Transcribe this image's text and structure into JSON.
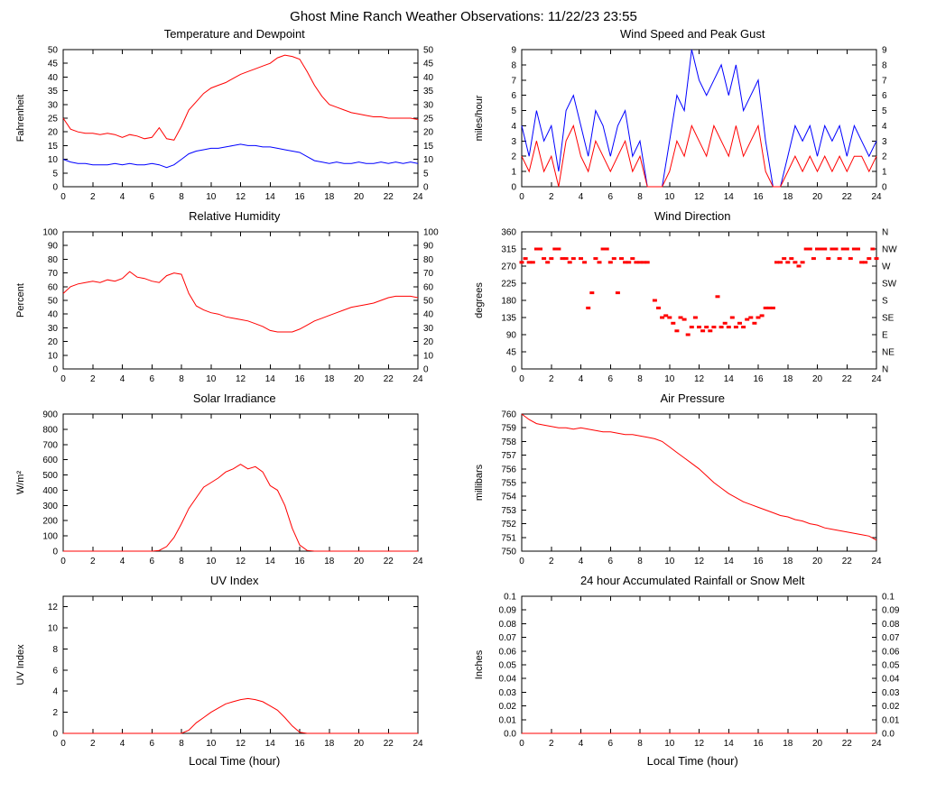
{
  "page_title": "Ghost Mine Ranch Weather Observations: 11/22/23 23:55",
  "colors": {
    "series_red": "#ff0000",
    "series_blue": "#0000ff",
    "axis": "#000000",
    "background": "#ffffff"
  },
  "chart_data": [
    {
      "type": "line",
      "title": "Temperature and Dewpoint",
      "ylabel": "Fahrenheit",
      "xlim": [
        0,
        24
      ],
      "ylim": [
        0,
        50
      ],
      "xticks": [
        0,
        2,
        4,
        6,
        8,
        10,
        12,
        14,
        16,
        18,
        20,
        22,
        24
      ],
      "ytick_values": [
        0,
        5,
        10,
        15,
        20,
        25,
        30,
        35,
        40,
        45,
        50
      ],
      "ytick_labels": [
        "0",
        "5",
        "10",
        "15",
        "20",
        "25",
        "30",
        "35",
        "40",
        "45",
        "50"
      ],
      "right_labels": "same",
      "grid": false,
      "series": [
        {
          "name": "Temperature",
          "color": "#ff0000",
          "x_step": 0.5,
          "y": [
            25,
            21,
            20,
            19.5,
            19.5,
            19,
            19.5,
            19,
            18,
            19,
            18.5,
            17.5,
            18,
            21.5,
            17.5,
            17,
            22,
            28,
            31,
            34,
            36,
            37,
            38,
            39.5,
            41,
            42,
            43,
            44,
            45,
            47,
            48,
            47.5,
            46.5,
            42,
            37,
            33,
            30,
            29,
            28,
            27,
            26.5,
            26,
            25.5,
            25.5,
            25,
            25,
            25,
            25,
            24.5
          ]
        },
        {
          "name": "Dewpoint",
          "color": "#0000ff",
          "x_step": 0.5,
          "y": [
            10,
            9,
            8.5,
            8.5,
            8,
            8,
            8,
            8.5,
            8,
            8.5,
            8,
            8,
            8.5,
            8,
            7,
            8,
            10,
            12,
            13,
            13.5,
            14,
            14,
            14.5,
            15,
            15.5,
            15,
            15,
            14.5,
            14.5,
            14,
            13.5,
            13,
            12.5,
            11,
            9.5,
            9,
            8.5,
            9,
            8.5,
            8.5,
            9,
            8.5,
            8.5,
            9,
            8.5,
            9,
            8.5,
            9,
            8.5
          ]
        }
      ]
    },
    {
      "type": "line",
      "title": "Wind Speed and Peak Gust",
      "ylabel": "miles/hour",
      "xlim": [
        0,
        24
      ],
      "ylim": [
        0,
        9
      ],
      "xticks": [
        0,
        2,
        4,
        6,
        8,
        10,
        12,
        14,
        16,
        18,
        20,
        22,
        24
      ],
      "ytick_values": [
        0,
        1,
        2,
        3,
        4,
        5,
        6,
        7,
        8,
        9
      ],
      "ytick_labels": [
        "0",
        "1",
        "2",
        "3",
        "4",
        "5",
        "6",
        "7",
        "8",
        "9"
      ],
      "right_labels": "same",
      "grid": false,
      "series": [
        {
          "name": "Peak Gust",
          "color": "#0000ff",
          "x_step": 0.5,
          "y": [
            4,
            2,
            5,
            3,
            4,
            1,
            5,
            6,
            4,
            2,
            5,
            4,
            2,
            4,
            5,
            2,
            3,
            0,
            0,
            0,
            3,
            6,
            5,
            9,
            7,
            6,
            7,
            8,
            6,
            8,
            5,
            6,
            7,
            3,
            0,
            0,
            2,
            4,
            3,
            4,
            2,
            4,
            3,
            4,
            2,
            4,
            3,
            2,
            3
          ]
        },
        {
          "name": "Wind Speed",
          "color": "#ff0000",
          "x_step": 0.5,
          "y": [
            2,
            1,
            3,
            1,
            2,
            0,
            3,
            4,
            2,
            1,
            3,
            2,
            1,
            2,
            3,
            1,
            2,
            0,
            0,
            0,
            1,
            3,
            2,
            4,
            3,
            2,
            4,
            3,
            2,
            4,
            2,
            3,
            4,
            1,
            0,
            0,
            1,
            2,
            1,
            2,
            1,
            2,
            1,
            2,
            1,
            2,
            2,
            1,
            2
          ]
        }
      ]
    },
    {
      "type": "line",
      "title": "Relative Humidity",
      "ylabel": "Percent",
      "xlim": [
        0,
        24
      ],
      "ylim": [
        0,
        100
      ],
      "xticks": [
        0,
        2,
        4,
        6,
        8,
        10,
        12,
        14,
        16,
        18,
        20,
        22,
        24
      ],
      "ytick_values": [
        0,
        10,
        20,
        30,
        40,
        50,
        60,
        70,
        80,
        90,
        100
      ],
      "ytick_labels": [
        "0",
        "10",
        "20",
        "30",
        "40",
        "50",
        "60",
        "70",
        "80",
        "90",
        "100"
      ],
      "right_labels": "same",
      "grid": false,
      "series": [
        {
          "name": "Relative Humidity",
          "color": "#ff0000",
          "x_step": 0.5,
          "y": [
            55,
            60,
            62,
            63,
            64,
            63,
            65,
            64,
            66,
            71,
            67,
            66,
            64,
            63,
            68,
            70,
            69,
            55,
            46,
            43,
            41,
            40,
            38,
            37,
            36,
            35,
            33,
            31,
            28,
            27,
            27,
            27,
            29,
            32,
            35,
            37,
            39,
            41,
            43,
            45,
            46,
            47,
            48,
            50,
            52,
            53,
            53,
            53,
            52
          ]
        }
      ]
    },
    {
      "type": "scatter",
      "title": "Wind Direction",
      "ylabel": "degrees",
      "xlim": [
        0,
        24
      ],
      "ylim": [
        0,
        360
      ],
      "xticks": [
        0,
        2,
        4,
        6,
        8,
        10,
        12,
        14,
        16,
        18,
        20,
        22,
        24
      ],
      "ytick_values": [
        0,
        45,
        90,
        135,
        180,
        225,
        270,
        315,
        360
      ],
      "ytick_labels": [
        "0",
        "45",
        "90",
        "135",
        "180",
        "225",
        "270",
        "315",
        "360"
      ],
      "right_labels": "custom",
      "rtick_values": [
        0,
        45,
        90,
        135,
        180,
        225,
        270,
        315,
        360
      ],
      "rtick_labels": [
        "N",
        "NE",
        "E",
        "SE",
        "S",
        "SW",
        "W",
        "NW",
        "N"
      ],
      "grid": false,
      "series": [
        {
          "name": "Wind Direction",
          "color": "#ff0000",
          "x": [
            0,
            0.25,
            0.5,
            0.75,
            1,
            1.25,
            1.5,
            1.75,
            2,
            2.25,
            2.5,
            2.75,
            3,
            3.25,
            3.5,
            4,
            4.25,
            4.5,
            4.75,
            5,
            5.25,
            5.5,
            5.75,
            6,
            6.25,
            6.5,
            6.75,
            7,
            7.25,
            7.5,
            7.75,
            8,
            8.25,
            8.5,
            9,
            9.25,
            9.5,
            9.75,
            10,
            10.25,
            10.5,
            10.75,
            11,
            11.25,
            11.5,
            11.75,
            12,
            12.25,
            12.5,
            12.75,
            13,
            13.25,
            13.5,
            13.75,
            14,
            14.25,
            14.5,
            14.75,
            15,
            15.25,
            15.5,
            15.75,
            16,
            16.25,
            16.5,
            16.75,
            17,
            17.25,
            17.5,
            17.75,
            18,
            18.25,
            18.5,
            18.75,
            19,
            19.25,
            19.5,
            19.75,
            20,
            20.25,
            20.5,
            20.75,
            21,
            21.25,
            21.5,
            21.75,
            22,
            22.25,
            22.5,
            22.75,
            23,
            23.25,
            23.5,
            23.75,
            24
          ],
          "y": [
            280,
            290,
            280,
            280,
            315,
            315,
            290,
            280,
            290,
            315,
            315,
            290,
            290,
            280,
            290,
            290,
            280,
            160,
            200,
            290,
            280,
            315,
            315,
            280,
            290,
            200,
            290,
            280,
            280,
            290,
            280,
            280,
            280,
            280,
            180,
            160,
            135,
            140,
            135,
            120,
            100,
            135,
            130,
            90,
            110,
            135,
            110,
            100,
            110,
            100,
            110,
            190,
            110,
            120,
            110,
            135,
            110,
            120,
            110,
            130,
            135,
            120,
            135,
            140,
            160,
            160,
            160,
            280,
            280,
            290,
            280,
            290,
            280,
            270,
            280,
            315,
            315,
            290,
            315,
            315,
            315,
            290,
            315,
            315,
            290,
            315,
            315,
            290,
            315,
            315,
            280,
            280,
            290,
            315,
            290
          ]
        }
      ]
    },
    {
      "type": "line",
      "title": "Solar Irradiance",
      "ylabel": "W/m²",
      "xlim": [
        0,
        24
      ],
      "ylim": [
        0,
        900
      ],
      "xticks": [
        0,
        2,
        4,
        6,
        8,
        10,
        12,
        14,
        16,
        18,
        20,
        22,
        24
      ],
      "ytick_values": [
        0,
        100,
        200,
        300,
        400,
        500,
        600,
        700,
        800,
        900
      ],
      "ytick_labels": [
        "0",
        "100",
        "200",
        "300",
        "400",
        "500",
        "600",
        "700",
        "800",
        "900"
      ],
      "right_labels": "none",
      "grid": false,
      "series": [
        {
          "name": "Solar Irradiance",
          "color": "#ff0000",
          "x_step": 0.5,
          "y": [
            0,
            0,
            0,
            0,
            0,
            0,
            0,
            0,
            0,
            0,
            0,
            0,
            0,
            5,
            30,
            90,
            180,
            280,
            350,
            420,
            450,
            480,
            520,
            540,
            570,
            540,
            555,
            520,
            430,
            400,
            300,
            150,
            40,
            5,
            0,
            0,
            0,
            0,
            0,
            0,
            0,
            0,
            0,
            0,
            0,
            0,
            0,
            0,
            0
          ]
        }
      ]
    },
    {
      "type": "line",
      "title": "Air Pressure",
      "ylabel": "millibars",
      "xlim": [
        0,
        24
      ],
      "ylim": [
        750,
        760
      ],
      "xticks": [
        0,
        2,
        4,
        6,
        8,
        10,
        12,
        14,
        16,
        18,
        20,
        22,
        24
      ],
      "ytick_values": [
        750,
        751,
        752,
        753,
        754,
        755,
        756,
        757,
        758,
        759,
        760
      ],
      "ytick_labels": [
        "750",
        "751",
        "752",
        "753",
        "754",
        "755",
        "756",
        "757",
        "758",
        "759",
        "760"
      ],
      "right_labels": "none",
      "grid": false,
      "series": [
        {
          "name": "Air Pressure",
          "color": "#ff0000",
          "x_step": 0.5,
          "y": [
            760,
            759.6,
            759.3,
            759.2,
            759.1,
            759,
            759,
            758.9,
            759,
            758.9,
            758.8,
            758.7,
            758.7,
            758.6,
            758.5,
            758.5,
            758.4,
            758.3,
            758.2,
            758,
            757.6,
            757.2,
            756.8,
            756.4,
            756,
            755.5,
            755,
            754.6,
            754.2,
            753.9,
            753.6,
            753.4,
            753.2,
            753,
            752.8,
            752.6,
            752.5,
            752.3,
            752.2,
            752,
            751.9,
            751.7,
            751.6,
            751.5,
            751.4,
            751.3,
            751.2,
            751.1,
            750.8
          ]
        }
      ]
    },
    {
      "type": "line",
      "title": "UV Index",
      "ylabel": "UV Index",
      "xlabel": "Local Time (hour)",
      "xlim": [
        0,
        24
      ],
      "ylim": [
        0,
        13
      ],
      "xticks": [
        0,
        2,
        4,
        6,
        8,
        10,
        12,
        14,
        16,
        18,
        20,
        22,
        24
      ],
      "ytick_values": [
        0,
        2,
        4,
        6,
        8,
        10,
        12
      ],
      "ytick_labels": [
        "0",
        "2",
        "4",
        "6",
        "8",
        "10",
        "12"
      ],
      "right_labels": "none",
      "grid": false,
      "series": [
        {
          "name": "UV Index",
          "color": "#ff0000",
          "x_step": 0.5,
          "y": [
            0,
            0,
            0,
            0,
            0,
            0,
            0,
            0,
            0,
            0,
            0,
            0,
            0,
            0,
            0,
            0,
            0,
            0.3,
            1,
            1.5,
            2,
            2.4,
            2.8,
            3,
            3.2,
            3.3,
            3.2,
            3,
            2.6,
            2.2,
            1.5,
            0.7,
            0.1,
            0,
            0,
            0,
            0,
            0,
            0,
            0,
            0,
            0,
            0,
            0,
            0,
            0,
            0,
            0,
            0
          ]
        }
      ]
    },
    {
      "type": "line",
      "title": "24 hour Accumulated Rainfall or Snow Melt",
      "ylabel": "Inches",
      "xlabel": "Local Time (hour)",
      "xlim": [
        0,
        24
      ],
      "ylim": [
        0,
        0.1
      ],
      "xticks": [
        0,
        2,
        4,
        6,
        8,
        10,
        12,
        14,
        16,
        18,
        20,
        22,
        24
      ],
      "ytick_values": [
        0,
        0.01,
        0.02,
        0.03,
        0.04,
        0.05,
        0.06,
        0.07,
        0.08,
        0.09,
        0.1
      ],
      "ytick_labels": [
        "0.0",
        "0.01",
        "0.02",
        "0.03",
        "0.04",
        "0.05",
        "0.06",
        "0.07",
        "0.08",
        "0.09",
        "0.1"
      ],
      "right_labels": "same",
      "grid": false,
      "series": [
        {
          "name": "Accumulated Rainfall",
          "color": "#ff0000",
          "x": [
            0,
            24
          ],
          "y": [
            0,
            0
          ]
        }
      ]
    }
  ]
}
